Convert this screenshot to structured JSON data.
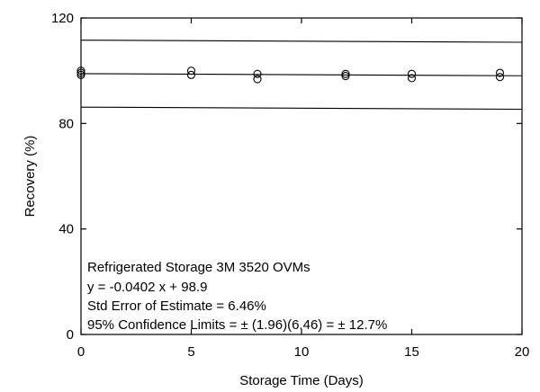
{
  "chart_data": {
    "type": "scatter",
    "title": "",
    "xlabel": "Storage Time (Days)",
    "ylabel": "Recovery (%)",
    "xlim": [
      0,
      20
    ],
    "ylim": [
      0,
      120
    ],
    "xticks": [
      0,
      5,
      10,
      15,
      20
    ],
    "yticks": [
      0,
      40,
      80,
      120
    ],
    "grid": false,
    "legend": "none",
    "series": [
      {
        "values": [
          {
            "x": 0,
            "y": 100.0
          },
          {
            "x": 0,
            "y": 99.2
          },
          {
            "x": 0,
            "y": 98.4
          },
          {
            "x": 5,
            "y": 100.0
          },
          {
            "x": 5,
            "y": 98.4
          },
          {
            "x": 8,
            "y": 98.8
          },
          {
            "x": 8,
            "y": 96.8
          },
          {
            "x": 12,
            "y": 98.8
          },
          {
            "x": 12,
            "y": 98.0
          },
          {
            "x": 15,
            "y": 98.8
          },
          {
            "x": 15,
            "y": 97.2
          },
          {
            "x": 19,
            "y": 99.2
          },
          {
            "x": 19,
            "y": 97.6
          }
        ]
      }
    ],
    "lines": [
      {
        "role": "regression",
        "slope": -0.0402,
        "intercept": 98.9
      },
      {
        "role": "upper-95-limit",
        "slope": -0.0402,
        "intercept": 111.6
      },
      {
        "role": "lower-95-limit",
        "slope": -0.0402,
        "intercept": 86.2
      }
    ],
    "annotations": [
      "Refrigerated Storage 3M 3520 OVMs",
      "y = -0.0402 x + 98.9",
      "Std Error of Estimate = 6.46%",
      "95% Confidence Limits = ± (1.96)(6.46) = ± 12.7%"
    ]
  }
}
